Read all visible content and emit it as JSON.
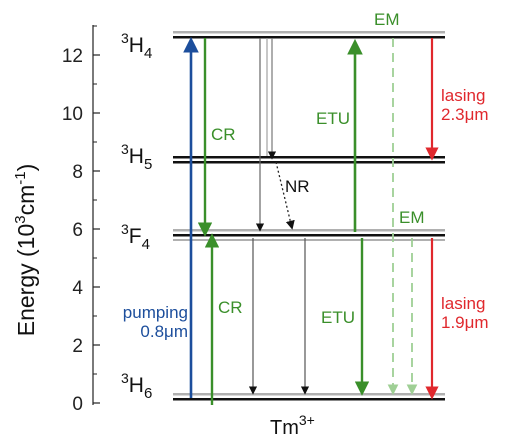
{
  "axis": {
    "title_main": "Energy (10",
    "title_exp1": "3",
    "title_mid": "cm",
    "title_exp2": "-1",
    "title_end": ")",
    "ticks": [
      "0",
      "2",
      "4",
      "6",
      "8",
      "10",
      "12"
    ]
  },
  "levels": {
    "h4": {
      "term": "H",
      "mult": "3",
      "j": "4"
    },
    "h5": {
      "term": "H",
      "mult": "3",
      "j": "5"
    },
    "f4": {
      "term": "F",
      "mult": "3",
      "j": "4"
    },
    "h6": {
      "term": "H",
      "mult": "3",
      "j": "6"
    }
  },
  "labels": {
    "pumping_line1": "pumping",
    "pumping_line2": "0.8μm",
    "cr_upper": "CR",
    "cr_lower": "CR",
    "etu_upper": "ETU",
    "etu_lower": "ETU",
    "nr": "NR",
    "em_upper": "EM",
    "em_lower": "EM",
    "lasing_upper_line1": "lasing",
    "lasing_upper_line2": "2.3μm",
    "lasing_lower_line1": "lasing",
    "lasing_lower_line2": "1.9μm",
    "ion_main": "Tm",
    "ion_charge": "3+"
  },
  "colors": {
    "pumping": "#1c4e9c",
    "green": "#3a8f2a",
    "lasing": "#e0282d",
    "em_dash": "#9fcf95",
    "level_gray": "#b0b0b0"
  }
}
